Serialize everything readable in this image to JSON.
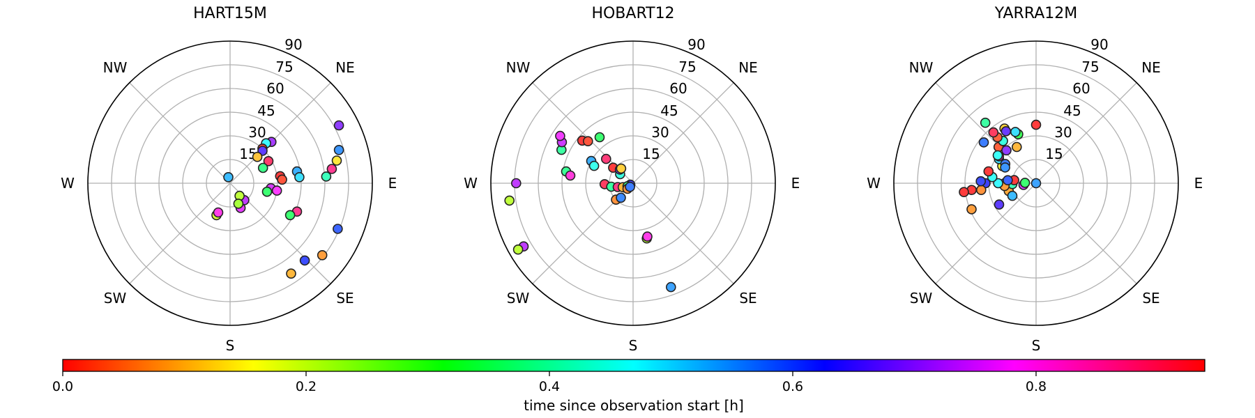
{
  "chart_data": [
    {
      "type": "scatter",
      "projection": "polar-skyplot",
      "title": "HART15M",
      "direction_labels": [
        "NE",
        "E",
        "SE",
        "S",
        "SW",
        "W",
        "NW"
      ],
      "radial_ticks": [
        "15",
        "30",
        "45",
        "60",
        "75",
        "90"
      ],
      "grid": true,
      "points": [
        {
          "az": 62,
          "el": 12,
          "t": 0.7
        },
        {
          "az": 73,
          "el": 18,
          "t": 0.56
        },
        {
          "az": 78,
          "el": 21,
          "t": 0.14
        },
        {
          "az": 82,
          "el": 25,
          "t": 0.88
        },
        {
          "az": 86,
          "el": 29,
          "t": 0.42
        },
        {
          "az": 45,
          "el": 53,
          "t": 0.72
        },
        {
          "az": 42,
          "el": 56,
          "t": 0.48
        },
        {
          "az": 43,
          "el": 60,
          "t": 0.01
        },
        {
          "az": 45,
          "el": 61,
          "t": 0.66
        },
        {
          "az": 46,
          "el": 66,
          "t": 0.11
        },
        {
          "az": 60,
          "el": 62,
          "t": 0.91
        },
        {
          "az": 65,
          "el": 67,
          "t": 0.38
        },
        {
          "az": 80,
          "el": 47,
          "t": 0.54
        },
        {
          "az": 85,
          "el": 46,
          "t": 0.5
        },
        {
          "az": 82,
          "el": 58,
          "t": 0.0
        },
        {
          "az": 86,
          "el": 57,
          "t": 0.02
        },
        {
          "az": 97,
          "el": 64,
          "t": 0.76
        },
        {
          "az": 99,
          "el": 60,
          "t": 0.79
        },
        {
          "az": 103,
          "el": 66,
          "t": 0.36
        },
        {
          "az": 113,
          "el": 44,
          "t": 0.88
        },
        {
          "az": 118,
          "el": 47,
          "t": 0.36
        },
        {
          "az": 113,
          "el": 16,
          "t": 0.6
        },
        {
          "az": 128,
          "el": 16,
          "t": 0.08
        },
        {
          "az": 136,
          "el": 22,
          "t": 0.62
        },
        {
          "az": 146,
          "el": 21,
          "t": 0.1
        },
        {
          "az": 140,
          "el": 76,
          "t": 0.74
        },
        {
          "az": 143,
          "el": 80,
          "t": 0.21
        },
        {
          "az": 157,
          "el": 73,
          "t": 0.77
        },
        {
          "az": 158,
          "el": 76,
          "t": 0.23
        },
        {
          "az": 164,
          "el": 94,
          "t": 0.53
        },
        {
          "az": 203,
          "el": 68,
          "t": 0.19
        },
        {
          "az": 202,
          "el": 70,
          "t": 0.81
        }
      ]
    },
    {
      "type": "scatter",
      "projection": "polar-skyplot",
      "title": "HOBART12",
      "direction_labels": [
        "NW",
        "NE",
        "E",
        "SE",
        "S",
        "SW",
        "W"
      ],
      "radial_ticks": [
        "15",
        "30",
        "45",
        "60",
        "75",
        "90"
      ],
      "grid": true,
      "points": [
        {
          "az": 270,
          "el": 16,
          "t": 0.74
        },
        {
          "az": 262,
          "el": 11,
          "t": 0.21
        },
        {
          "az": 240,
          "el": 10,
          "t": 0.74
        },
        {
          "az": 240,
          "el": 6,
          "t": 0.21
        },
        {
          "az": 160,
          "el": 20,
          "t": 0.55
        },
        {
          "az": 166,
          "el": 54,
          "t": 0.21
        },
        {
          "az": 165,
          "el": 55,
          "t": 0.81
        },
        {
          "az": 280,
          "el": 47,
          "t": 0.39
        },
        {
          "az": 277,
          "el": 50,
          "t": 0.82
        },
        {
          "az": 268,
          "el": 72,
          "t": 0.92
        },
        {
          "az": 261,
          "el": 76,
          "t": 0.4
        },
        {
          "az": 256,
          "el": 80,
          "t": 0.89
        },
        {
          "az": 249,
          "el": 83,
          "t": 0.1
        },
        {
          "az": 243,
          "el": 88,
          "t": 0.64
        },
        {
          "az": 242,
          "el": 86,
          "t": 0.38
        },
        {
          "az": 226,
          "el": 75,
          "t": 0.07
        },
        {
          "az": 220,
          "el": 78,
          "t": 0.57
        },
        {
          "az": 225,
          "el": 85,
          "t": 0.07
        },
        {
          "az": 220,
          "el": 87,
          "t": 0.58
        },
        {
          "az": 295,
          "el": 40,
          "t": 0.4
        },
        {
          "az": 300,
          "el": 38,
          "t": 0.75
        },
        {
          "az": 303,
          "el": 35,
          "t": 0.78
        },
        {
          "az": 310,
          "el": 48,
          "t": 0.0
        },
        {
          "az": 313,
          "el": 51,
          "t": 0.02
        },
        {
          "az": 298,
          "el": 60,
          "t": 0.54
        },
        {
          "az": 294,
          "el": 63,
          "t": 0.46
        },
        {
          "az": 312,
          "el": 67,
          "t": 0.9
        },
        {
          "az": 324,
          "el": 54,
          "t": 0.36
        },
        {
          "az": 308,
          "el": 74,
          "t": 0.99
        },
        {
          "az": 305,
          "el": 80,
          "t": 0.45
        },
        {
          "az": 316,
          "el": 78,
          "t": 0.69
        },
        {
          "az": 321,
          "el": 78,
          "t": 0.12
        }
      ]
    },
    {
      "type": "scatter",
      "projection": "polar-skyplot",
      "title": "YARRA12M",
      "direction_labels": [
        "NW",
        "NE",
        "E",
        "SE",
        "S",
        "SW",
        "W"
      ],
      "radial_ticks": [
        "15",
        "30",
        "45",
        "60",
        "75",
        "90"
      ],
      "grid": true,
      "points": [
        {
          "az": 270,
          "el": 58,
          "t": 0.63
        },
        {
          "az": 263,
          "el": 55,
          "t": 0.07
        },
        {
          "az": 264,
          "el": 49,
          "t": 0.95
        },
        {
          "az": 263,
          "el": 44,
          "t": 0.96
        },
        {
          "az": 248,
          "el": 46,
          "t": 0.08
        },
        {
          "az": 254,
          "el": 72,
          "t": 0.09
        },
        {
          "az": 242,
          "el": 73,
          "t": 0.53
        },
        {
          "az": 240,
          "el": 63,
          "t": 0.66
        },
        {
          "az": 272,
          "el": 55,
          "t": 0.62
        },
        {
          "az": 268,
          "el": 75,
          "t": 0.42
        },
        {
          "az": 270,
          "el": 70,
          "t": 0.58
        },
        {
          "az": 265,
          "el": 70,
          "t": 0.08
        },
        {
          "az": 262,
          "el": 82,
          "t": 0.76
        },
        {
          "az": 270,
          "el": 66,
          "t": 0.48
        },
        {
          "az": 270,
          "el": 90,
          "t": 0.55
        },
        {
          "az": 278,
          "el": 76,
          "t": 0.95
        },
        {
          "az": 276,
          "el": 72,
          "t": 0.6
        },
        {
          "az": 278,
          "el": 62,
          "t": 0.47
        },
        {
          "az": 272,
          "el": 83,
          "t": 0.36
        },
        {
          "az": 284,
          "el": 59,
          "t": 0.0
        },
        {
          "az": 297,
          "el": 66,
          "t": 0.16
        },
        {
          "az": 303,
          "el": 62,
          "t": 0.5
        },
        {
          "az": 306,
          "el": 61,
          "t": 0.83
        },
        {
          "az": 314,
          "el": 57,
          "t": 0.03
        },
        {
          "az": 322,
          "el": 56,
          "t": 0.45
        },
        {
          "az": 332,
          "el": 64,
          "t": 0.1
        },
        {
          "az": 340,
          "el": 57,
          "t": 0.34
        },
        {
          "az": 302,
          "el": 67,
          "t": 0.58
        },
        {
          "az": 297,
          "el": 68,
          "t": 0.56
        },
        {
          "az": 318,
          "el": 62,
          "t": 0.7
        },
        {
          "az": 320,
          "el": 52,
          "t": 0.03
        },
        {
          "az": 320,
          "el": 48,
          "t": 0.92
        },
        {
          "az": 320,
          "el": 40,
          "t": 0.4
        },
        {
          "az": 330,
          "el": 50,
          "t": 0.12
        },
        {
          "az": 330,
          "el": 52,
          "t": 0.67
        },
        {
          "az": 338,
          "el": 55,
          "t": 0.5
        },
        {
          "az": 308,
          "el": 48,
          "t": 0.58
        },
        {
          "az": 306,
          "el": 60,
          "t": 0.47
        },
        {
          "az": 360,
          "el": 53,
          "t": 0.0
        }
      ]
    }
  ],
  "colorbar": {
    "label": "time since observation start [h]",
    "range": [
      0,
      0.95
    ],
    "ticks": [
      "0.0",
      "0.2",
      "0.4",
      "0.6",
      "0.8"
    ],
    "colormap": "hsv"
  }
}
